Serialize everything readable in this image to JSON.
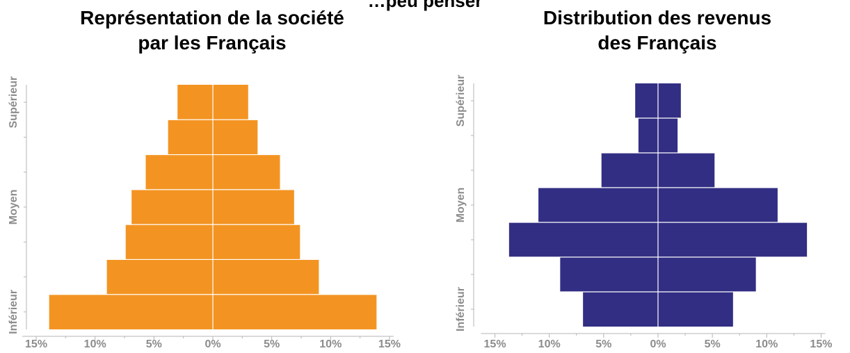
{
  "page": {
    "main_title": "…peu penser"
  },
  "chart_data": [
    {
      "type": "bar",
      "orientation": "horizontal-pyramid",
      "title_line1": "Représentation de la société",
      "title_line2": "par les Français",
      "color": "#F39422",
      "categories": [
        "Inférieur",
        "",
        "",
        "Moyen",
        "",
        "",
        "Supérieur"
      ],
      "axis_category_labels": [
        "Inférieur",
        "Moyen",
        "Supérieur"
      ],
      "values": [
        13.9,
        9.0,
        7.4,
        6.9,
        5.7,
        3.8,
        3.0
      ],
      "xlim": [
        -15,
        15
      ],
      "x_ticks": [
        -15,
        -10,
        -5,
        0,
        5,
        10,
        15
      ],
      "x_tick_labels": [
        "15%",
        "10%",
        "5%",
        "0%",
        "5%",
        "10%",
        "15%"
      ],
      "grid": false
    },
    {
      "type": "bar",
      "orientation": "horizontal-pyramid",
      "title_line1": "Distribution des revenus",
      "title_line2": "des Français",
      "color": "#322E83",
      "categories": [
        "Inférieur",
        "",
        "",
        "Moyen",
        "",
        "",
        "Supérieur"
      ],
      "axis_category_labels": [
        "Inférieur",
        "Moyen",
        "Supérieur"
      ],
      "values": [
        6.9,
        9.0,
        13.7,
        11.0,
        5.2,
        1.8,
        2.1
      ],
      "xlim": [
        -15,
        15
      ],
      "x_ticks": [
        -15,
        -10,
        -5,
        0,
        5,
        10,
        15
      ],
      "x_tick_labels": [
        "15%",
        "10%",
        "5%",
        "0%",
        "5%",
        "10%",
        "15%"
      ],
      "grid": false
    }
  ]
}
